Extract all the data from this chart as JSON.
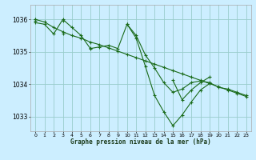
{
  "bg_color": "#cceeff",
  "grid_color": "#99cccc",
  "line_color": "#1a6b1a",
  "x_ticks": [
    0,
    1,
    2,
    3,
    4,
    5,
    6,
    7,
    8,
    9,
    10,
    11,
    12,
    13,
    14,
    15,
    16,
    17,
    18,
    19,
    20,
    21,
    22,
    23
  ],
  "y_ticks": [
    1033,
    1034,
    1035,
    1036
  ],
  "ylim": [
    1032.55,
    1036.45
  ],
  "xlim": [
    -0.5,
    23.5
  ],
  "xlabel": "Graphe pression niveau de la mer (hPa)",
  "series": [
    [
      1035.9,
      1035.85,
      1035.55,
      1036.0,
      1035.75,
      1035.5,
      1035.1,
      1035.15,
      1035.2,
      1035.1,
      1035.85,
      1035.5,
      1034.9,
      1034.5,
      1034.05,
      1033.75,
      1033.85,
      1034.05,
      1034.1,
      1034.05,
      1033.9,
      1033.85,
      1033.75,
      1033.65
    ],
    [
      1036.0,
      1035.92,
      1035.75,
      1035.62,
      1035.5,
      1035.42,
      1035.3,
      1035.22,
      1035.12,
      1035.02,
      1034.92,
      1034.82,
      1034.72,
      1034.62,
      1034.52,
      1034.42,
      1034.32,
      1034.22,
      1034.12,
      1034.02,
      1033.92,
      1033.82,
      1033.72,
      1033.62
    ],
    [
      1036.0,
      null,
      null,
      1035.55,
      null,
      null,
      1035.12,
      null,
      null,
      null,
      1035.85,
      1035.42,
      1034.55,
      1033.65,
      1033.15,
      1032.72,
      1033.05,
      1033.45,
      1033.82,
      1034.02,
      null,
      null,
      null,
      null
    ],
    [
      1035.95,
      null,
      null,
      1035.95,
      null,
      null,
      null,
      null,
      null,
      null,
      null,
      null,
      null,
      null,
      null,
      1034.12,
      1033.52,
      1033.82,
      1034.05,
      1034.22,
      null,
      null,
      null,
      null
    ]
  ]
}
